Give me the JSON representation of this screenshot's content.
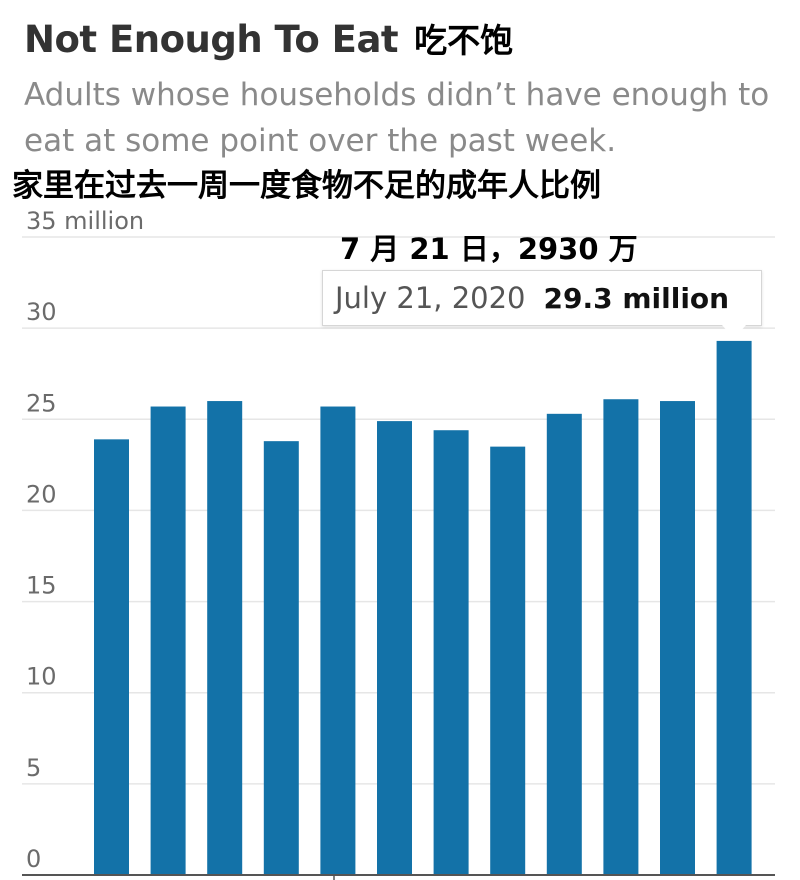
{
  "header": {
    "title": "Not Enough To Eat",
    "title_cn": "吃不饱",
    "subtitle": "Adults whose households didn’t have enough to eat at some point over the past week.",
    "subtitle_cn": "家里在过去一周一度食物不足的成年人比例"
  },
  "annotation": {
    "cn": "7 月 21 日，2930 万",
    "tooltip_date": "July 21, 2020",
    "tooltip_value": "29.3 million"
  },
  "colors": {
    "bar": "#1372a8",
    "grid": "#e6e6e6",
    "axis": "#555555"
  },
  "chart_data": {
    "type": "bar",
    "title": "Not Enough To Eat",
    "xlabel": "",
    "ylabel": "",
    "ylim": [
      0,
      35
    ],
    "yticks": [
      0,
      5,
      10,
      15,
      20,
      25,
      30,
      35
    ],
    "ytick_labels": [
      "0",
      "5",
      "10",
      "15",
      "20",
      "25",
      "30",
      "35 million"
    ],
    "values": [
      23.9,
      25.7,
      26.0,
      23.8,
      25.7,
      24.9,
      24.4,
      23.5,
      25.3,
      26.1,
      26.0,
      29.3
    ],
    "highlight": {
      "date": "July 21, 2020",
      "value": 29.3,
      "label": "29.3 million"
    },
    "grid": true,
    "legend": "none"
  }
}
